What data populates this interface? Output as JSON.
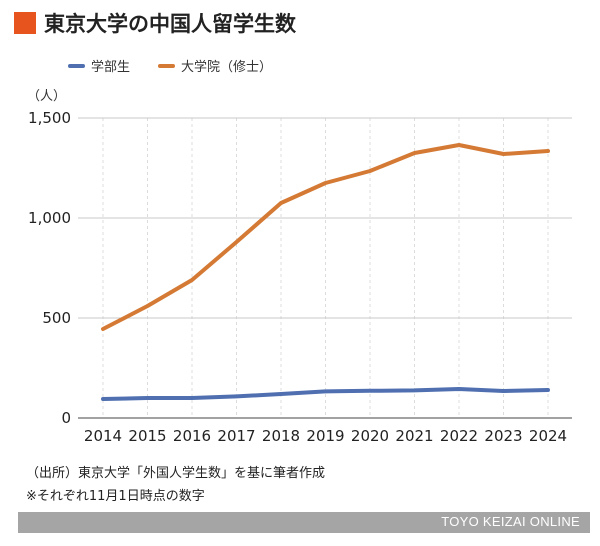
{
  "title": "東京大学の中国人留学生数",
  "unit_label": "（人）",
  "colors": {
    "accent": "#e8541e",
    "undergrad": "#4f6fb0",
    "graduate": "#d47a35",
    "grid": "#cfcfcf",
    "footer": "#a5a5a5"
  },
  "chart_data": {
    "type": "line",
    "x": [
      "2014",
      "2015",
      "2016",
      "2017",
      "2018",
      "2019",
      "2020",
      "2021",
      "2022",
      "2023",
      "2024"
    ],
    "series": [
      {
        "name": "学部生",
        "values": [
          95,
          100,
          100,
          108,
          120,
          133,
          136,
          138,
          145,
          135,
          140
        ]
      },
      {
        "name": "大学院（修士）",
        "values": [
          445,
          560,
          690,
          880,
          1075,
          1175,
          1235,
          1325,
          1365,
          1320,
          1335
        ]
      }
    ],
    "ylim": [
      0,
      1500
    ],
    "yticks": [
      "0",
      "500",
      "1,000",
      "1,500"
    ],
    "grid": true,
    "legend_position": "top-left"
  },
  "footnotes": {
    "source": "（出所）東京大学「外国人学生数」を基に筆者作成",
    "note": "※それぞれ11月1日時点の数字"
  },
  "footer": {
    "brand": "TOYO KEIZAI ONLINE"
  }
}
